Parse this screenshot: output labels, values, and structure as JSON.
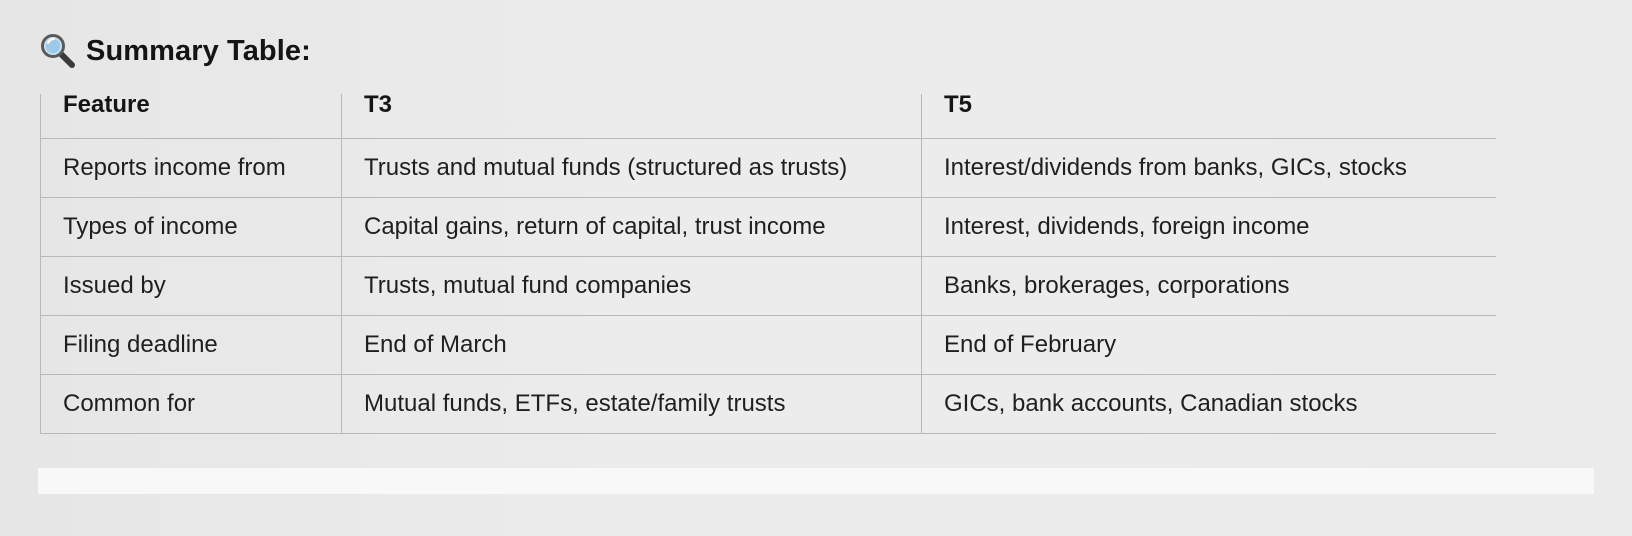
{
  "heading": {
    "icon": "magnifying-glass-icon",
    "title": "Summary Table:"
  },
  "table": {
    "headers": [
      "Feature",
      "T3",
      "T5"
    ],
    "rows": [
      [
        "Reports income from",
        "Trusts and mutual funds (structured as trusts)",
        "Interest/dividends from banks, GICs, stocks"
      ],
      [
        "Types of income",
        "Capital gains, return of capital, trust income",
        "Interest, dividends, foreign income"
      ],
      [
        "Issued by",
        "Trusts, mutual fund companies",
        "Banks, brokerages, corporations"
      ],
      [
        "Filing deadline",
        "End of March",
        "End of February"
      ],
      [
        "Common for",
        "Mutual funds, ETFs, estate/family trusts",
        "GICs, bank accounts, Canadian stocks"
      ]
    ]
  },
  "colors": {
    "text": "#1f1f1f",
    "border": "#b9b9b9",
    "background": "#ebebeb",
    "icon_lens": "#9ec9e8",
    "icon_handle": "#3a3a3a"
  }
}
